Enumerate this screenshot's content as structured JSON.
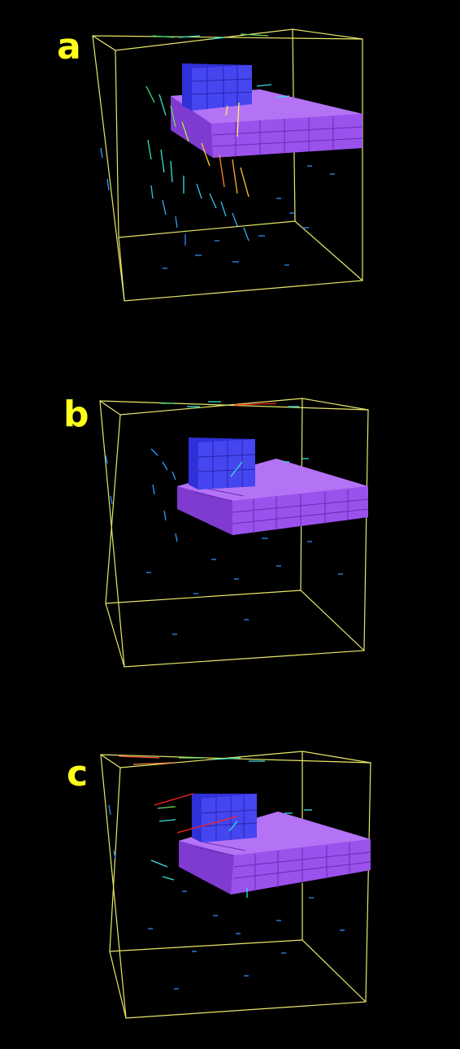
{
  "colors": {
    "background": "#000000",
    "box_edges": "#e8e86a",
    "label": "#ffff1a",
    "slab_purple": "#9a4de8",
    "cube_blue": "#3a3ae6",
    "vector_low": "#2a8cff",
    "vector_mid": "#33e0e0",
    "vector_high": "#ff2020"
  },
  "panels": [
    {
      "label": "a"
    },
    {
      "label": "b"
    },
    {
      "label": "c"
    }
  ]
}
